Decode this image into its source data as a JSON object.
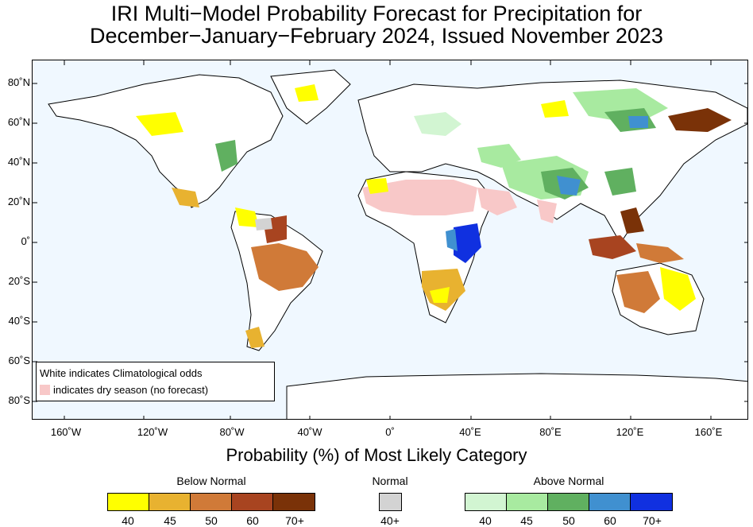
{
  "title_line1": "IRI Multi−Model Probability Forecast for Precipitation for",
  "title_line2": "December−January−February 2024, Issued November 2023",
  "x_axis_title": "Probability (%) of Most Likely Category",
  "longitude_labels": [
    "160˚W",
    "120˚W",
    "80˚W",
    "40˚W",
    "0˚",
    "40˚E",
    "80˚E",
    "120˚E",
    "160˚E"
  ],
  "latitude_labels": [
    "80˚N",
    "60˚N",
    "40˚N",
    "20˚N",
    "0˚",
    "20˚S",
    "40˚S",
    "60˚S",
    "80˚S"
  ],
  "legend_note": {
    "line1": "White indicates Climatological odds",
    "line2": "indicates dry season (no forecast)",
    "dry_season_color": "#f8c8c8"
  },
  "colorbars": {
    "below": {
      "label": "Below Normal",
      "colors": [
        "#ffff00",
        "#e8b230",
        "#d07a38",
        "#a84420",
        "#7a3208"
      ],
      "ticks": [
        "40",
        "45",
        "50",
        "60",
        "70+"
      ]
    },
    "normal": {
      "label": "Normal",
      "colors": [
        "#d3d3d3"
      ],
      "ticks": [
        "40+"
      ]
    },
    "above": {
      "label": "Above Normal",
      "colors": [
        "#d2f5d2",
        "#a8eaa0",
        "#60b060",
        "#4090d0",
        "#1030e0"
      ],
      "ticks": [
        "40",
        "45",
        "50",
        "60",
        "70+"
      ]
    }
  }
}
